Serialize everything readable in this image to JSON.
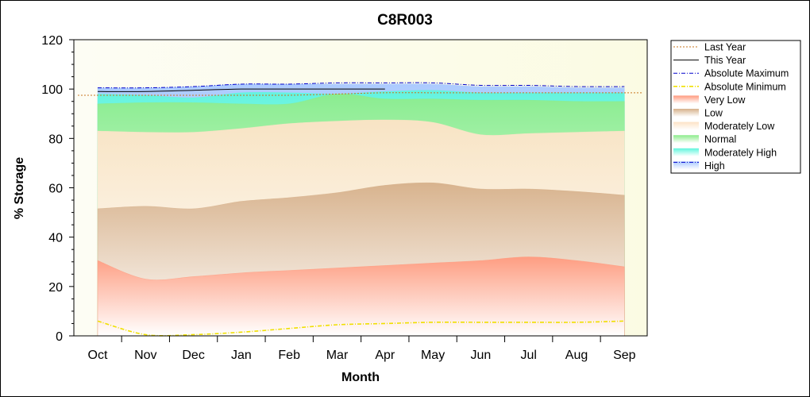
{
  "chart_data": {
    "type": "area",
    "title": "C8R003",
    "xlabel": "Month",
    "ylabel": "% Storage",
    "ylim": [
      0,
      120
    ],
    "yticks": [
      0,
      20,
      40,
      60,
      80,
      100,
      120
    ],
    "categories": [
      "Oct",
      "Nov",
      "Dec",
      "Jan",
      "Feb",
      "Mar",
      "Apr",
      "May",
      "Jun",
      "Jul",
      "Aug",
      "Sep"
    ],
    "legend_position": "right",
    "bands": [
      {
        "name": "Very Low",
        "values": [
          30.5,
          23,
          24,
          25.5,
          26.5,
          27.5,
          28.5,
          29.5,
          30.5,
          32,
          30.5,
          28
        ],
        "color": "#ff9a7e"
      },
      {
        "name": "Low",
        "values": [
          51.5,
          52.5,
          51.5,
          54.5,
          56,
          58,
          61,
          62,
          59.5,
          59.5,
          58.5,
          57
        ],
        "color": "#d6b08a"
      },
      {
        "name": "Moderately Low",
        "values": [
          83,
          82.5,
          82.5,
          84,
          86,
          87,
          87.5,
          86.5,
          81.5,
          82,
          82.5,
          83
        ],
        "color": "#fde3c6"
      },
      {
        "name": "Normal",
        "values": [
          94,
          94.5,
          94.5,
          94,
          94,
          98,
          96,
          96,
          95.5,
          95.5,
          95,
          95
        ],
        "color": "#8cec8c"
      },
      {
        "name": "Moderately High",
        "values": [
          98,
          97.5,
          96.5,
          98.5,
          98.5,
          98,
          99,
          99.5,
          98.5,
          98.5,
          98.5,
          98.5
        ],
        "color": "#5ff5dd"
      },
      {
        "name": "High",
        "values": [
          100.5,
          100.5,
          101,
          102,
          102,
          102,
          102,
          102,
          101,
          101,
          100.5,
          100.5
        ],
        "color": "#a8c8ff"
      }
    ],
    "series": [
      {
        "name": "Last Year",
        "values": [
          97.5,
          97.5,
          97.5,
          97.5,
          97.5,
          98,
          98.5,
          98.5,
          98.5,
          98.5,
          98.5,
          98.5
        ],
        "color": "#c8751e",
        "style": "dotted"
      },
      {
        "name": "This Year",
        "values": [
          99,
          99,
          99.5,
          100,
          100,
          100,
          100,
          null,
          null,
          null,
          null,
          null
        ],
        "color": "#000000",
        "style": "solid"
      },
      {
        "name": "Absolute Maximum",
        "values": [
          100.5,
          100.5,
          101,
          102,
          102,
          102.5,
          102.5,
          102.5,
          101.5,
          101.5,
          101,
          101
        ],
        "color": "#0000cc",
        "style": "dashdot"
      },
      {
        "name": "Absolute Minimum",
        "values": [
          6,
          0.5,
          0.5,
          1.5,
          3,
          4.5,
          5,
          5.5,
          5.5,
          5.5,
          5.5,
          6
        ],
        "color": "#f0e000",
        "style": "dashdot"
      }
    ],
    "legend": [
      {
        "name": "Last Year",
        "kind": "line",
        "color": "#c8751e",
        "style": "dotted"
      },
      {
        "name": "This Year",
        "kind": "line",
        "color": "#000000",
        "style": "solid"
      },
      {
        "name": "Absolute Maximum",
        "kind": "line",
        "color": "#0000cc",
        "style": "dashdot"
      },
      {
        "name": "Absolute Minimum",
        "kind": "line",
        "color": "#f0e000",
        "style": "dashdot"
      },
      {
        "name": "Very Low",
        "kind": "band",
        "color": "#ff9a7e"
      },
      {
        "name": "Low",
        "kind": "band",
        "color": "#d6b08a"
      },
      {
        "name": "Moderately Low",
        "kind": "band",
        "color": "#fde3c6"
      },
      {
        "name": "Normal",
        "kind": "band",
        "color": "#8cec8c"
      },
      {
        "name": "Moderately High",
        "kind": "band",
        "color": "#5ff5dd"
      },
      {
        "name": "High",
        "kind": "band",
        "color": "#a8c8ff"
      }
    ],
    "plot_background": "#fbfbe3"
  }
}
